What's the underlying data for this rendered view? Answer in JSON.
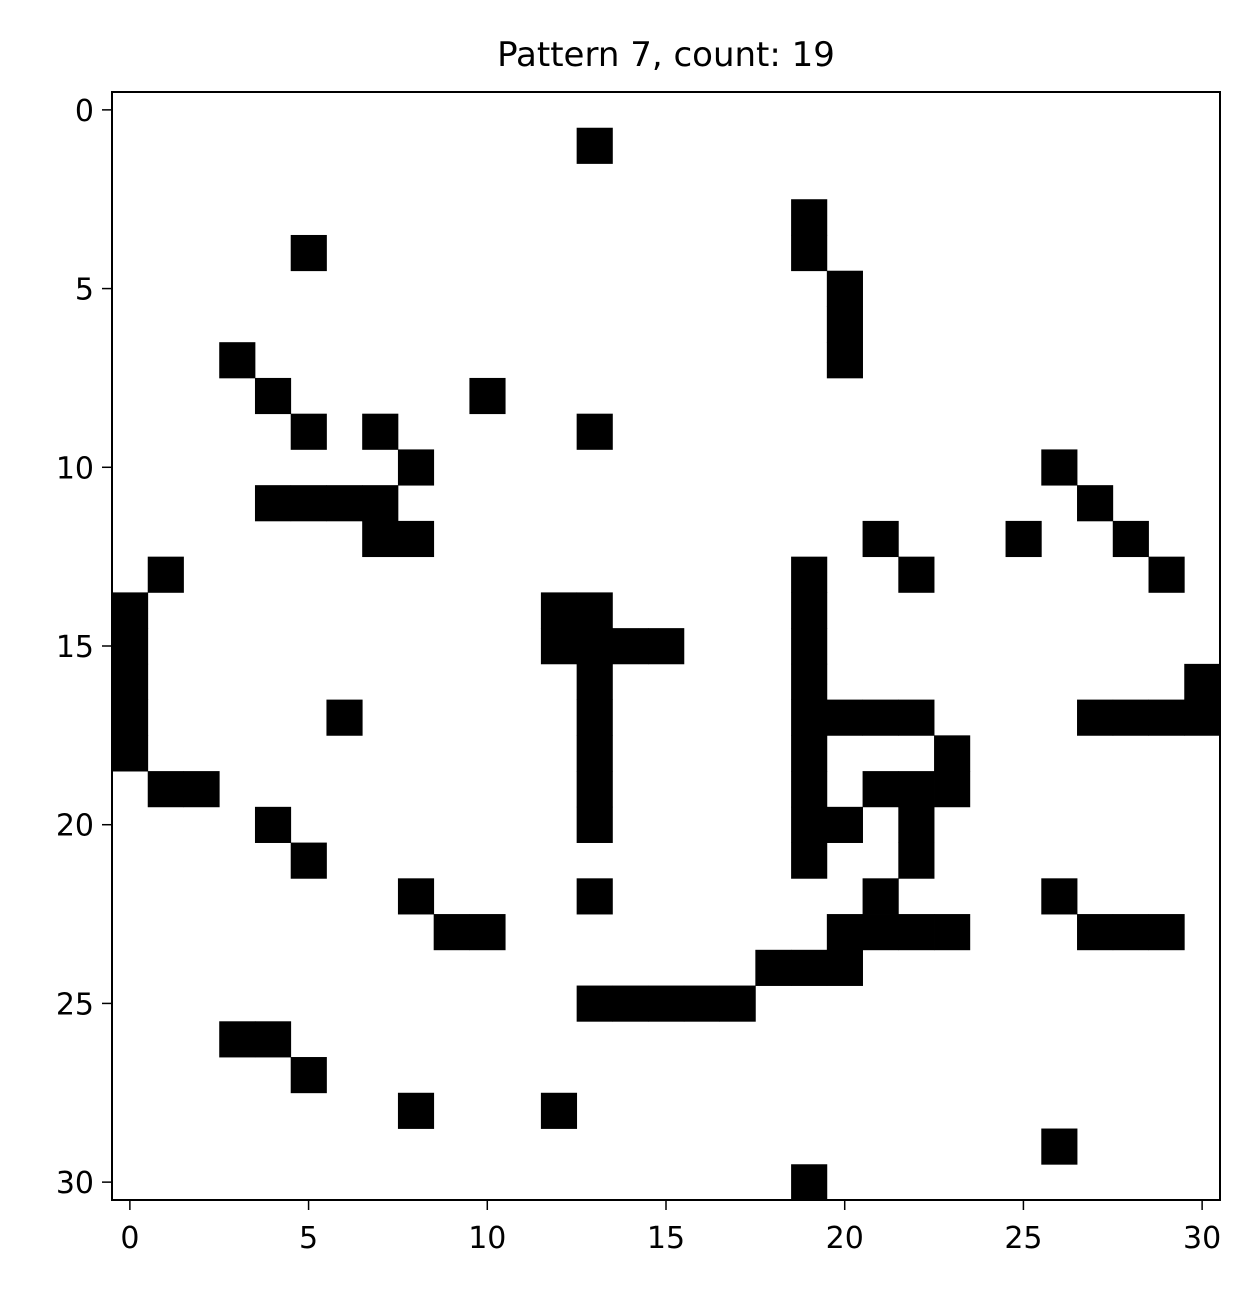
{
  "chart_data": {
    "type": "heatmap",
    "title": "Pattern 7, count: 19",
    "xlabel": "",
    "ylabel": "",
    "grid": false,
    "colormap": {
      "filled": "#000000",
      "empty": "#ffffff"
    },
    "n_rows": 31,
    "n_cols": 31,
    "x_range": [
      -0.5,
      30.5
    ],
    "y_range": [
      30.5,
      -0.5
    ],
    "x_ticks": [
      0,
      5,
      10,
      15,
      20,
      25,
      30
    ],
    "y_ticks": [
      0,
      5,
      10,
      15,
      20,
      25,
      30
    ],
    "x_tick_labels": [
      "0",
      "5",
      "10",
      "15",
      "20",
      "25",
      "30"
    ],
    "y_tick_labels": [
      "0",
      "5",
      "10",
      "15",
      "20",
      "25",
      "30"
    ],
    "filled_cells": [
      [
        1,
        13
      ],
      [
        3,
        19
      ],
      [
        4,
        5
      ],
      [
        4,
        19
      ],
      [
        5,
        20
      ],
      [
        6,
        20
      ],
      [
        7,
        20
      ],
      [
        7,
        3
      ],
      [
        8,
        4
      ],
      [
        8,
        10
      ],
      [
        9,
        5
      ],
      [
        9,
        7
      ],
      [
        9,
        13
      ],
      [
        10,
        8
      ],
      [
        10,
        26
      ],
      [
        11,
        4
      ],
      [
        11,
        5
      ],
      [
        11,
        6
      ],
      [
        11,
        7
      ],
      [
        11,
        27
      ],
      [
        12,
        7
      ],
      [
        12,
        8
      ],
      [
        12,
        21
      ],
      [
        12,
        25
      ],
      [
        12,
        28
      ],
      [
        13,
        1
      ],
      [
        13,
        19
      ],
      [
        13,
        22
      ],
      [
        13,
        29
      ],
      [
        14,
        0
      ],
      [
        14,
        12
      ],
      [
        14,
        13
      ],
      [
        14,
        19
      ],
      [
        15,
        0
      ],
      [
        15,
        12
      ],
      [
        15,
        13
      ],
      [
        15,
        14
      ],
      [
        15,
        15
      ],
      [
        15,
        19
      ],
      [
        16,
        0
      ],
      [
        16,
        13
      ],
      [
        16,
        19
      ],
      [
        16,
        30
      ],
      [
        17,
        0
      ],
      [
        17,
        6
      ],
      [
        17,
        13
      ],
      [
        17,
        19
      ],
      [
        17,
        20
      ],
      [
        17,
        21
      ],
      [
        17,
        22
      ],
      [
        17,
        27
      ],
      [
        17,
        28
      ],
      [
        17,
        29
      ],
      [
        17,
        30
      ],
      [
        18,
        0
      ],
      [
        18,
        13
      ],
      [
        18,
        19
      ],
      [
        18,
        23
      ],
      [
        19,
        1
      ],
      [
        19,
        2
      ],
      [
        19,
        13
      ],
      [
        19,
        19
      ],
      [
        19,
        21
      ],
      [
        19,
        22
      ],
      [
        19,
        23
      ],
      [
        20,
        4
      ],
      [
        20,
        13
      ],
      [
        20,
        19
      ],
      [
        20,
        20
      ],
      [
        20,
        22
      ],
      [
        21,
        5
      ],
      [
        21,
        19
      ],
      [
        21,
        22
      ],
      [
        22,
        8
      ],
      [
        22,
        13
      ],
      [
        22,
        21
      ],
      [
        22,
        26
      ],
      [
        23,
        9
      ],
      [
        23,
        10
      ],
      [
        23,
        20
      ],
      [
        23,
        21
      ],
      [
        23,
        22
      ],
      [
        23,
        23
      ],
      [
        23,
        27
      ],
      [
        23,
        28
      ],
      [
        23,
        29
      ],
      [
        24,
        18
      ],
      [
        24,
        19
      ],
      [
        24,
        20
      ],
      [
        25,
        13
      ],
      [
        25,
        14
      ],
      [
        25,
        15
      ],
      [
        25,
        16
      ],
      [
        25,
        17
      ],
      [
        26,
        3
      ],
      [
        26,
        4
      ],
      [
        27,
        5
      ],
      [
        28,
        8
      ],
      [
        28,
        12
      ],
      [
        29,
        26
      ],
      [
        30,
        19
      ]
    ]
  }
}
